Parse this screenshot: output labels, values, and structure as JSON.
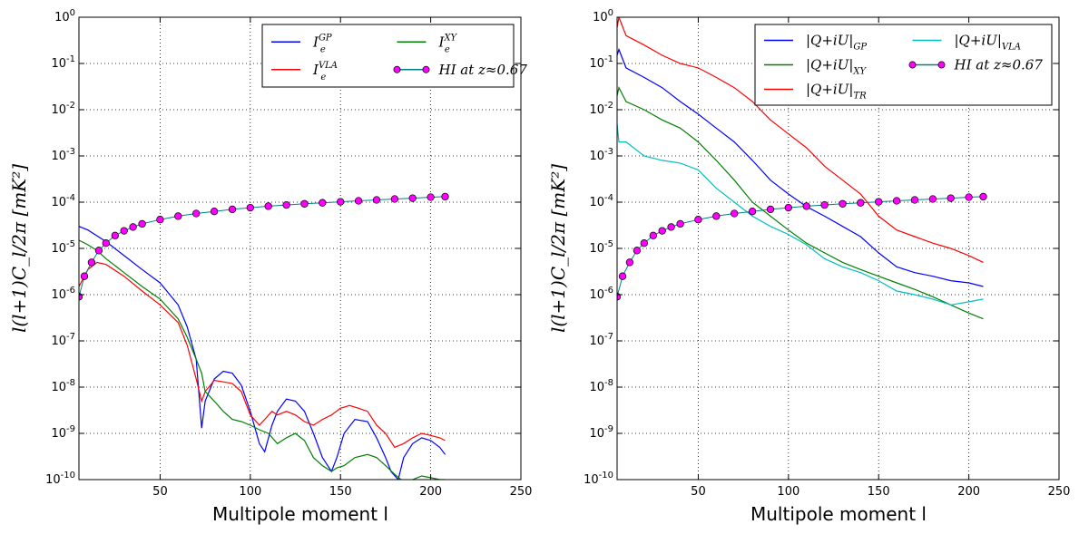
{
  "chart_data": [
    {
      "type": "line",
      "panel": "left",
      "xlabel": "Multipole moment l",
      "ylabel": "l(l+1)C_l/2π [mK²]",
      "xlim": [
        5,
        250
      ],
      "ylim": [
        1e-10,
        1
      ],
      "yscale": "log",
      "grid": true,
      "legend_position": "top-right",
      "legend_columns": 2,
      "x_ticks": [
        "50",
        "100",
        "150",
        "200",
        "250"
      ],
      "y_ticks": [
        {
          "base": "10",
          "exp": "0"
        },
        {
          "base": "10",
          "exp": "-1"
        },
        {
          "base": "10",
          "exp": "-2"
        },
        {
          "base": "10",
          "exp": "-3"
        },
        {
          "base": "10",
          "exp": "-4"
        },
        {
          "base": "10",
          "exp": "-5"
        },
        {
          "base": "10",
          "exp": "-6"
        },
        {
          "base": "10",
          "exp": "-7"
        },
        {
          "base": "10",
          "exp": "-8"
        },
        {
          "base": "10",
          "exp": "-9"
        },
        {
          "base": "10",
          "exp": "-10"
        }
      ],
      "series": [
        {
          "name": "I_e^{GP}",
          "label_main": "I",
          "label_sub": "e",
          "label_sup": "GP",
          "color": "#0000ff",
          "marker": "none",
          "x": [
            5,
            10,
            20,
            30,
            40,
            50,
            60,
            65,
            70,
            73,
            75,
            80,
            85,
            90,
            95,
            100,
            105,
            108,
            112,
            115,
            120,
            125,
            130,
            135,
            140,
            145,
            148,
            152,
            158,
            165,
            170,
            175,
            178,
            182,
            185,
            190,
            195,
            200,
            205,
            208
          ],
          "y": [
            3e-05,
            2.5e-05,
            1.4e-05,
            7e-06,
            3.5e-06,
            1.8e-06,
            6e-07,
            2e-07,
            4e-08,
            1.3e-09,
            5e-09,
            1.5e-08,
            2.2e-08,
            2e-08,
            1.1e-08,
            3e-09,
            6e-10,
            4e-10,
            1.5e-09,
            3e-09,
            5.5e-09,
            5e-09,
            3e-09,
            1e-09,
            3e-10,
            1.5e-10,
            3e-10,
            1e-09,
            2e-09,
            1.8e-09,
            8e-10,
            3e-10,
            1.5e-10,
            1e-10,
            3e-10,
            6e-10,
            8e-10,
            7e-10,
            5e-10,
            3.5e-10
          ]
        },
        {
          "name": "I_e^{VLA}",
          "label_main": "I",
          "label_sub": "e",
          "label_sup": "VLA",
          "color": "#ff0000",
          "marker": "none",
          "x": [
            5,
            8,
            10,
            15,
            20,
            30,
            40,
            50,
            60,
            65,
            70,
            73,
            75,
            80,
            85,
            90,
            95,
            100,
            105,
            108,
            112,
            115,
            120,
            125,
            130,
            135,
            140,
            145,
            150,
            155,
            160,
            165,
            170,
            175,
            180,
            185,
            190,
            195,
            200,
            205,
            208
          ],
          "y": [
            1.5e-06,
            2.5e-06,
            3.5e-06,
            5e-06,
            4.5e-06,
            2.5e-06,
            1.2e-06,
            6e-07,
            2.5e-07,
            8e-08,
            1.5e-08,
            5e-09,
            8e-09,
            1.4e-08,
            1.3e-08,
            1.2e-08,
            8e-09,
            2.5e-09,
            1.5e-09,
            2e-09,
            3e-09,
            2.5e-09,
            3e-09,
            2.5e-09,
            1.8e-09,
            1.5e-09,
            2e-09,
            2.5e-09,
            3.5e-09,
            4e-09,
            3.5e-09,
            3e-09,
            1.5e-09,
            1e-09,
            5e-10,
            6e-10,
            8e-10,
            1e-09,
            9e-10,
            8e-10,
            7e-10
          ]
        },
        {
          "name": "I_e^{XY}",
          "label_main": "I",
          "label_sub": "e",
          "label_sup": "XY",
          "color": "#008000",
          "marker": "none",
          "x": [
            5,
            10,
            15,
            20,
            30,
            40,
            50,
            60,
            65,
            70,
            73,
            75,
            80,
            85,
            90,
            95,
            100,
            105,
            110,
            115,
            120,
            125,
            130,
            135,
            140,
            145,
            148,
            152,
            158,
            165,
            170,
            175,
            180,
            185,
            190,
            195,
            200,
            205,
            208
          ],
          "y": [
            1.5e-05,
            1.2e-05,
            9e-06,
            6e-06,
            3e-06,
            1.5e-06,
            8e-07,
            3e-07,
            1.2e-07,
            4e-08,
            2e-08,
            8e-09,
            5e-09,
            3e-09,
            2e-09,
            1.8e-09,
            1.5e-09,
            1.2e-09,
            1e-09,
            6e-10,
            8e-10,
            1e-09,
            7e-10,
            3e-10,
            2e-10,
            1.5e-10,
            1.8e-10,
            2e-10,
            3e-10,
            3.5e-10,
            3e-10,
            2e-10,
            1.3e-10,
            9e-11,
            1e-10,
            1.2e-10,
            1.1e-10,
            1e-10,
            1e-10
          ]
        },
        {
          "name": "HI at z≈0.67",
          "label_main": "HI at z≈0.67",
          "color": "#ff00ff",
          "marker": "circle",
          "x": [
            5,
            8,
            12,
            16,
            20,
            25,
            30,
            35,
            40,
            50,
            60,
            70,
            80,
            90,
            100,
            110,
            120,
            130,
            140,
            150,
            160,
            170,
            180,
            190,
            200,
            208
          ],
          "y": [
            9e-07,
            2.5e-06,
            5e-06,
            9e-06,
            1.3e-05,
            1.9e-05,
            2.4e-05,
            2.9e-05,
            3.4e-05,
            4.2e-05,
            5e-05,
            5.7e-05,
            6.3e-05,
            7e-05,
            7.6e-05,
            8.2e-05,
            8.7e-05,
            9.2e-05,
            9.7e-05,
            0.000102,
            0.000107,
            0.000112,
            0.000117,
            0.000122,
            0.000128,
            0.000132
          ]
        }
      ]
    },
    {
      "type": "line",
      "panel": "right",
      "xlabel": "Multipole moment l",
      "ylabel": "l(l+1)C_l/2π [mK²]",
      "xlim": [
        5,
        250
      ],
      "ylim": [
        1e-10,
        1
      ],
      "yscale": "log",
      "grid": true,
      "legend_position": "top-right",
      "legend_columns": 2,
      "x_ticks": [
        "50",
        "100",
        "150",
        "200",
        "250"
      ],
      "y_ticks": [
        {
          "base": "10",
          "exp": "0"
        },
        {
          "base": "10",
          "exp": "-1"
        },
        {
          "base": "10",
          "exp": "-2"
        },
        {
          "base": "10",
          "exp": "-3"
        },
        {
          "base": "10",
          "exp": "-4"
        },
        {
          "base": "10",
          "exp": "-5"
        },
        {
          "base": "10",
          "exp": "-6"
        },
        {
          "base": "10",
          "exp": "-7"
        },
        {
          "base": "10",
          "exp": "-8"
        },
        {
          "base": "10",
          "exp": "-9"
        },
        {
          "base": "10",
          "exp": "-10"
        }
      ],
      "series": [
        {
          "name": "|Q+iU|_{GP}",
          "label_main": "|Q+iU|",
          "label_sub": "GP",
          "color": "#0000ff",
          "marker": "none",
          "x": [
            5,
            6,
            10,
            20,
            30,
            40,
            50,
            60,
            70,
            80,
            90,
            100,
            110,
            120,
            130,
            140,
            150,
            160,
            170,
            180,
            190,
            200,
            208
          ],
          "y": [
            0.15,
            0.2,
            0.08,
            0.05,
            0.03,
            0.015,
            0.008,
            0.004,
            0.002,
            0.0008,
            0.0003,
            0.00015,
            8e-05,
            5e-05,
            3e-05,
            1.8e-05,
            8e-06,
            4e-06,
            3e-06,
            2.5e-06,
            2e-06,
            1.8e-06,
            1.5e-06
          ]
        },
        {
          "name": "|Q+iU|_{XY}",
          "label_main": "|Q+iU|",
          "label_sub": "XY",
          "color": "#008000",
          "marker": "none",
          "x": [
            5,
            6,
            10,
            20,
            30,
            40,
            50,
            60,
            70,
            80,
            90,
            100,
            110,
            120,
            130,
            140,
            150,
            160,
            170,
            180,
            190,
            200,
            208
          ],
          "y": [
            0.02,
            0.03,
            0.015,
            0.01,
            0.006,
            0.004,
            0.002,
            0.0008,
            0.0003,
            0.0001,
            5e-05,
            2.5e-05,
            1.3e-05,
            8e-06,
            5e-06,
            3.5e-06,
            2.5e-06,
            1.8e-06,
            1.3e-06,
            9e-07,
            6e-07,
            4e-07,
            3e-07
          ]
        },
        {
          "name": "|Q+iU|_{TR}",
          "label_main": "|Q+iU|",
          "label_sub": "TR",
          "color": "#ff0000",
          "marker": "none",
          "x": [
            5,
            6,
            10,
            20,
            30,
            40,
            50,
            60,
            70,
            80,
            90,
            100,
            110,
            120,
            130,
            140,
            150,
            160,
            170,
            180,
            190,
            200,
            208
          ],
          "y": [
            0.6,
            1.0,
            0.4,
            0.25,
            0.15,
            0.1,
            0.08,
            0.05,
            0.03,
            0.015,
            0.006,
            0.003,
            0.0015,
            0.0006,
            0.0003,
            0.00015,
            5e-05,
            2.5e-05,
            1.8e-05,
            1.3e-05,
            1e-05,
            7e-06,
            5e-06
          ]
        },
        {
          "name": "|Q+iU|_{VLA}",
          "label_main": "|Q+iU|",
          "label_sub": "VLA",
          "color": "#00bfbf",
          "marker": "none",
          "x": [
            5,
            6,
            10,
            20,
            30,
            40,
            50,
            60,
            70,
            80,
            90,
            100,
            110,
            120,
            130,
            140,
            150,
            160,
            170,
            180,
            190,
            200,
            208
          ],
          "y": [
            0.005,
            0.002,
            0.002,
            0.001,
            0.0008,
            0.0007,
            0.0005,
            0.0002,
            0.0001,
            5e-05,
            3e-05,
            2e-05,
            1.2e-05,
            6e-06,
            4e-06,
            3e-06,
            2e-06,
            1.2e-06,
            1e-06,
            8e-07,
            6e-07,
            7e-07,
            8e-07
          ]
        },
        {
          "name": "HI at z≈0.67",
          "label_main": "HI at z≈0.67",
          "color": "#ff00ff",
          "marker": "circle",
          "x": [
            5,
            8,
            12,
            16,
            20,
            25,
            30,
            35,
            40,
            50,
            60,
            70,
            80,
            90,
            100,
            110,
            120,
            130,
            140,
            150,
            160,
            170,
            180,
            190,
            200,
            208
          ],
          "y": [
            9e-07,
            2.5e-06,
            5e-06,
            9e-06,
            1.3e-05,
            1.9e-05,
            2.4e-05,
            2.9e-05,
            3.4e-05,
            4.2e-05,
            5e-05,
            5.7e-05,
            6.3e-05,
            7e-05,
            7.6e-05,
            8.2e-05,
            8.7e-05,
            9.2e-05,
            9.7e-05,
            0.000102,
            0.000107,
            0.000112,
            0.000117,
            0.000122,
            0.000128,
            0.000132
          ]
        }
      ]
    }
  ]
}
